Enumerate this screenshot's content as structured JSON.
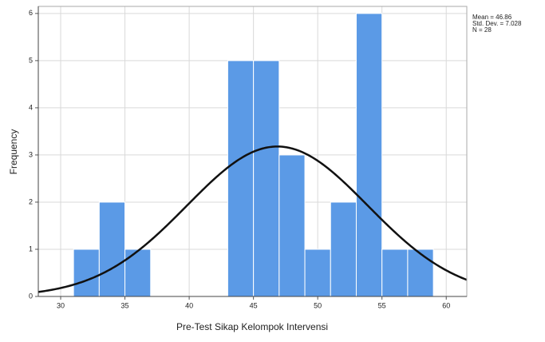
{
  "chart_data": {
    "type": "histogram",
    "x_label": "Pre-Test Sikap Kelompok Intervensi",
    "y_label": "Frequency",
    "bins": [
      31,
      33,
      35,
      37,
      39,
      41,
      43,
      45,
      47,
      49,
      51,
      53,
      55,
      57,
      59
    ],
    "values": [
      1,
      2,
      1,
      0,
      0,
      0,
      5,
      5,
      3,
      1,
      2,
      6,
      1,
      1
    ],
    "color": "#5b9ae6",
    "xlim": [
      28.26,
      61.6
    ],
    "xticks": [
      30,
      35,
      40,
      45,
      50,
      55,
      60
    ],
    "ylim": [
      0,
      6.15
    ],
    "yticks": [
      0,
      1,
      2,
      3,
      4,
      5,
      6
    ],
    "grid": true,
    "normal": {
      "mean": 46.86,
      "sd": 7.028,
      "n": 28,
      "color": "#111111",
      "labels": [
        "Mean = 46.86",
        "Std. Dev. = 7.028",
        "N = 28"
      ]
    }
  }
}
